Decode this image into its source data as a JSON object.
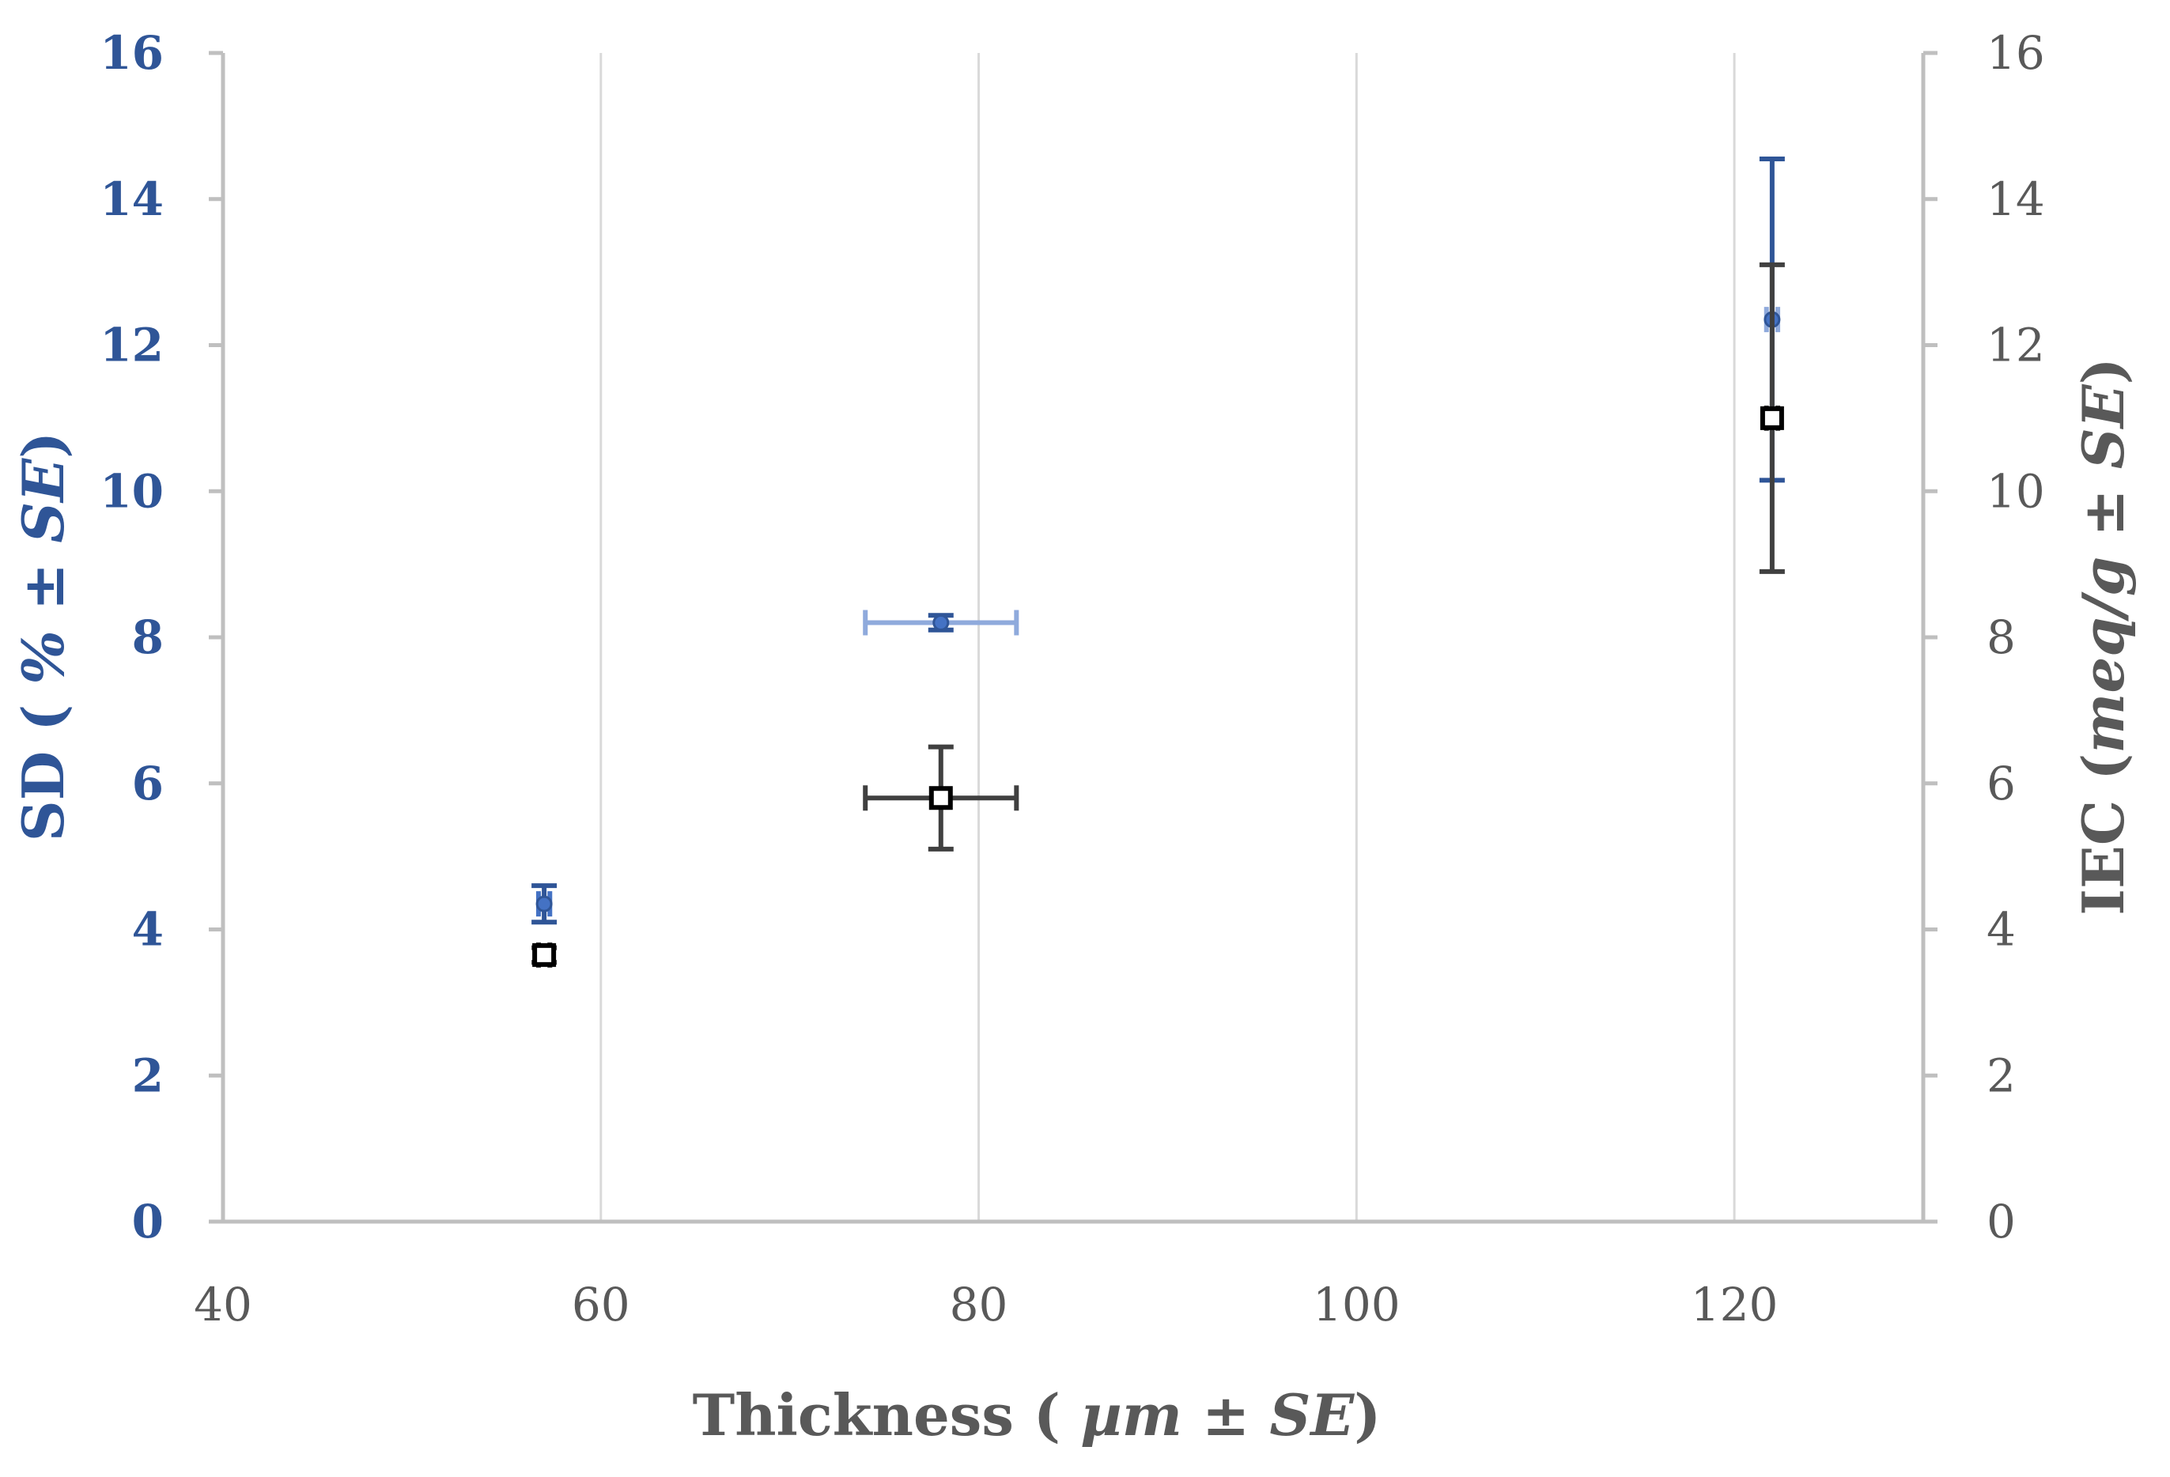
{
  "chart_data": {
    "type": "scatter",
    "title": "",
    "xlabel": {
      "prefix": "Thickness ( ",
      "unit": "µm",
      "pm": " ± ",
      "se": "SE",
      "suffix": ")"
    },
    "ylabel_left": {
      "prefix": "SD ( ",
      "unit": "%",
      "pm": " ± ",
      "se": "SE",
      "suffix": ")"
    },
    "ylabel_right": {
      "prefix": "IEC (",
      "unit": "meq/g",
      "pm": " ± ",
      "se": "SE",
      "suffix": ")"
    },
    "xlim": [
      40,
      130
    ],
    "ylim_left": [
      0,
      16
    ],
    "ylim_right": [
      0,
      16
    ],
    "x_ticks": [
      40,
      60,
      80,
      100,
      120
    ],
    "y_ticks_left": [
      0,
      2,
      4,
      6,
      8,
      10,
      12,
      14,
      16
    ],
    "y_ticks_right": [
      0,
      2,
      4,
      6,
      8,
      10,
      12,
      14,
      16
    ],
    "grid": "vertical",
    "series": [
      {
        "name": "SD",
        "axis": "left",
        "marker": "circle",
        "color": "#4472c4",
        "points": [
          {
            "x": 57,
            "y": 4.35,
            "xerr": 0.3,
            "yerr": 0.25,
            "xerr_color": "#4472c4",
            "yerr_color": "#2f5597"
          },
          {
            "x": 78,
            "y": 8.2,
            "xerr": 4,
            "yerr": 0.1,
            "xerr_color": "#8faadc",
            "yerr_color": "#2f5597"
          },
          {
            "x": 122,
            "y": 12.35,
            "xerr": 0.3,
            "yerr": 2.2,
            "xerr_color": "#8faadc",
            "yerr_color": "#2f5597"
          }
        ]
      },
      {
        "name": "IEC",
        "axis": "right",
        "marker": "square",
        "color": "#000000",
        "points": [
          {
            "x": 57,
            "y": 3.65,
            "xerr": 0.3,
            "yerr": 0.1,
            "xerr_color": "#404040",
            "yerr_color": "#404040"
          },
          {
            "x": 78,
            "y": 5.8,
            "xerr": 4,
            "yerr": 0.7,
            "xerr_color": "#404040",
            "yerr_color": "#404040"
          },
          {
            "x": 122,
            "y": 11.0,
            "xerr": 0.3,
            "yerr": 2.1,
            "xerr_color": "#404040",
            "yerr_color": "#404040"
          }
        ]
      }
    ]
  }
}
